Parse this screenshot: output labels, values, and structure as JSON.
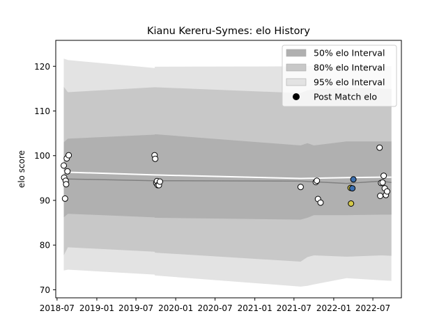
{
  "chart_data": {
    "type": "scatter",
    "title": "Kianu Kereru-Symes: elo History",
    "xlabel": "",
    "ylabel": "elo score",
    "x_axis": {
      "type": "date",
      "range": [
        "2018-06-25",
        "2022-11-10"
      ],
      "ticks": [
        "2018-07-01",
        "2019-01-01",
        "2019-07-01",
        "2020-01-01",
        "2020-07-01",
        "2021-01-01",
        "2021-07-01",
        "2022-01-01",
        "2022-07-01"
      ],
      "tick_labels": [
        "2018-07",
        "2019-01",
        "2019-07",
        "2020-01",
        "2020-07",
        "2021-01",
        "2021-07",
        "2022-01",
        "2022-07"
      ]
    },
    "y_axis": {
      "range": [
        68.2,
        125.8
      ],
      "ticks": [
        70,
        80,
        90,
        100,
        110,
        120
      ],
      "tick_labels": [
        "70",
        "80",
        "90",
        "100",
        "110",
        "120"
      ]
    },
    "grid": false,
    "legend_position": "top-right",
    "legend": [
      {
        "label": "50% elo Interval",
        "kind": "band",
        "color": "#b0b0b0"
      },
      {
        "label": "80% elo Interval",
        "kind": "band",
        "color": "#c8c8c8"
      },
      {
        "label": "95% elo Interval",
        "kind": "band",
        "color": "#e3e3e3"
      },
      {
        "label": "Post Match elo",
        "kind": "marker",
        "color": "#000000"
      }
    ],
    "series": [
      {
        "type": "band",
        "label": "95% elo Interval",
        "color": "#e3e3e3",
        "x": [
          "2018-08-01",
          "2018-08-20",
          "2019-09-25",
          "2019-09-27",
          "2021-08-01",
          "2021-09-01",
          "2021-10-01",
          "2022-03-01",
          "2022-08-10",
          "2022-09-25"
        ],
        "upper": [
          121.7,
          121.4,
          119.6,
          119.9,
          120.0,
          120.1,
          120.0,
          120.0,
          120.0,
          120.0
        ],
        "lower": [
          74.3,
          74.5,
          73.4,
          73.2,
          70.7,
          70.9,
          71.2,
          72.6,
          72.1,
          72.0
        ]
      },
      {
        "type": "band",
        "label": "80% elo Interval",
        "color": "#c8c8c8",
        "x": [
          "2018-08-01",
          "2018-08-20",
          "2019-09-25",
          "2019-09-27",
          "2021-08-01",
          "2021-09-01",
          "2021-10-01",
          "2022-03-01",
          "2022-08-10",
          "2022-09-25"
        ],
        "upper": [
          115.4,
          114.2,
          115.3,
          115.3,
          114.0,
          114.6,
          114.8,
          115.2,
          115.0,
          114.9
        ],
        "lower": [
          77.7,
          79.5,
          78.5,
          78.3,
          76.3,
          77.3,
          77.7,
          77.4,
          77.7,
          77.6
        ]
      },
      {
        "type": "band",
        "label": "50% elo Interval",
        "color": "#b0b0b0",
        "x": [
          "2018-08-01",
          "2018-08-20",
          "2019-09-25",
          "2019-09-27",
          "2021-08-01",
          "2021-09-01",
          "2021-10-01",
          "2022-03-01",
          "2022-08-10",
          "2022-09-25"
        ],
        "upper": [
          103.0,
          103.8,
          104.7,
          104.8,
          102.3,
          102.8,
          102.3,
          103.2,
          103.2,
          103.2
        ],
        "lower": [
          86.2,
          87.0,
          86.2,
          86.1,
          85.7,
          86.1,
          86.7,
          86.7,
          86.8,
          86.8
        ]
      },
      {
        "type": "line",
        "label": "",
        "color": "#808080",
        "x": [
          "2018-08-01",
          "2019-09-25",
          "2021-08-01",
          "2022-03-01",
          "2022-08-10",
          "2022-09-25"
        ],
        "y": [
          94.8,
          94.4,
          94.3,
          93.8,
          94.3,
          94.0
        ]
      },
      {
        "type": "line",
        "label": "",
        "color": "#ffffff",
        "x": [
          "2018-08-01",
          "2018-08-20",
          "2019-09-25",
          "2021-08-01",
          "2022-03-01",
          "2022-08-10",
          "2022-09-25"
        ],
        "y": [
          96.3,
          96.3,
          95.7,
          94.9,
          95.1,
          95.2,
          95.2
        ]
      },
      {
        "type": "scatter",
        "label": "Post Match elo",
        "points": [
          {
            "x": "2018-08-01",
            "y": 97.8,
            "color": "#ffffff"
          },
          {
            "x": "2018-08-03",
            "y": 95.1,
            "color": "#ffffff"
          },
          {
            "x": "2018-08-07",
            "y": 90.4,
            "color": "#ffffff"
          },
          {
            "x": "2018-08-10",
            "y": 94.4,
            "color": "#ffffff"
          },
          {
            "x": "2018-08-12",
            "y": 93.6,
            "color": "#ffffff"
          },
          {
            "x": "2018-08-15",
            "y": 99.4,
            "color": "#ffffff"
          },
          {
            "x": "2018-08-18",
            "y": 96.5,
            "color": "#ffffff"
          },
          {
            "x": "2018-08-24",
            "y": 100.1,
            "color": "#ffffff"
          },
          {
            "x": "2019-09-25",
            "y": 100.1,
            "color": "#ffffff"
          },
          {
            "x": "2019-09-28",
            "y": 99.3,
            "color": "#ffffff"
          },
          {
            "x": "2019-10-03",
            "y": 93.9,
            "color": "#ffffff"
          },
          {
            "x": "2019-10-06",
            "y": 94.3,
            "color": "#ffffff"
          },
          {
            "x": "2019-10-10",
            "y": 93.4,
            "color": "#ffffff"
          },
          {
            "x": "2019-10-15",
            "y": 93.4,
            "color": "#ffffff"
          },
          {
            "x": "2019-10-20",
            "y": 94.2,
            "color": "#ffffff"
          },
          {
            "x": "2021-08-01",
            "y": 93.0,
            "color": "#ffffff"
          },
          {
            "x": "2021-10-10",
            "y": 94.1,
            "color": "#ffffff"
          },
          {
            "x": "2021-10-15",
            "y": 94.4,
            "color": "#ffffff"
          },
          {
            "x": "2021-10-20",
            "y": 90.3,
            "color": "#ffffff"
          },
          {
            "x": "2021-11-01",
            "y": 89.5,
            "color": "#ffffff"
          },
          {
            "x": "2022-03-20",
            "y": 92.8,
            "color": "#d4c84a"
          },
          {
            "x": "2022-03-22",
            "y": 89.3,
            "color": "#d4c84a"
          },
          {
            "x": "2022-03-28",
            "y": 92.7,
            "color": "#3b6fb0"
          },
          {
            "x": "2022-04-02",
            "y": 94.7,
            "color": "#3b6fb0"
          },
          {
            "x": "2022-08-01",
            "y": 101.8,
            "color": "#ffffff"
          },
          {
            "x": "2022-08-04",
            "y": 91.0,
            "color": "#ffffff"
          },
          {
            "x": "2022-08-08",
            "y": 93.9,
            "color": "#ffffff"
          },
          {
            "x": "2022-08-15",
            "y": 94.0,
            "color": "#ffffff"
          },
          {
            "x": "2022-08-20",
            "y": 95.5,
            "color": "#ffffff"
          },
          {
            "x": "2022-08-25",
            "y": 92.7,
            "color": "#ffffff"
          },
          {
            "x": "2022-08-30",
            "y": 91.2,
            "color": "#ffffff"
          },
          {
            "x": "2022-09-05",
            "y": 92.0,
            "color": "#ffffff"
          }
        ]
      }
    ]
  }
}
